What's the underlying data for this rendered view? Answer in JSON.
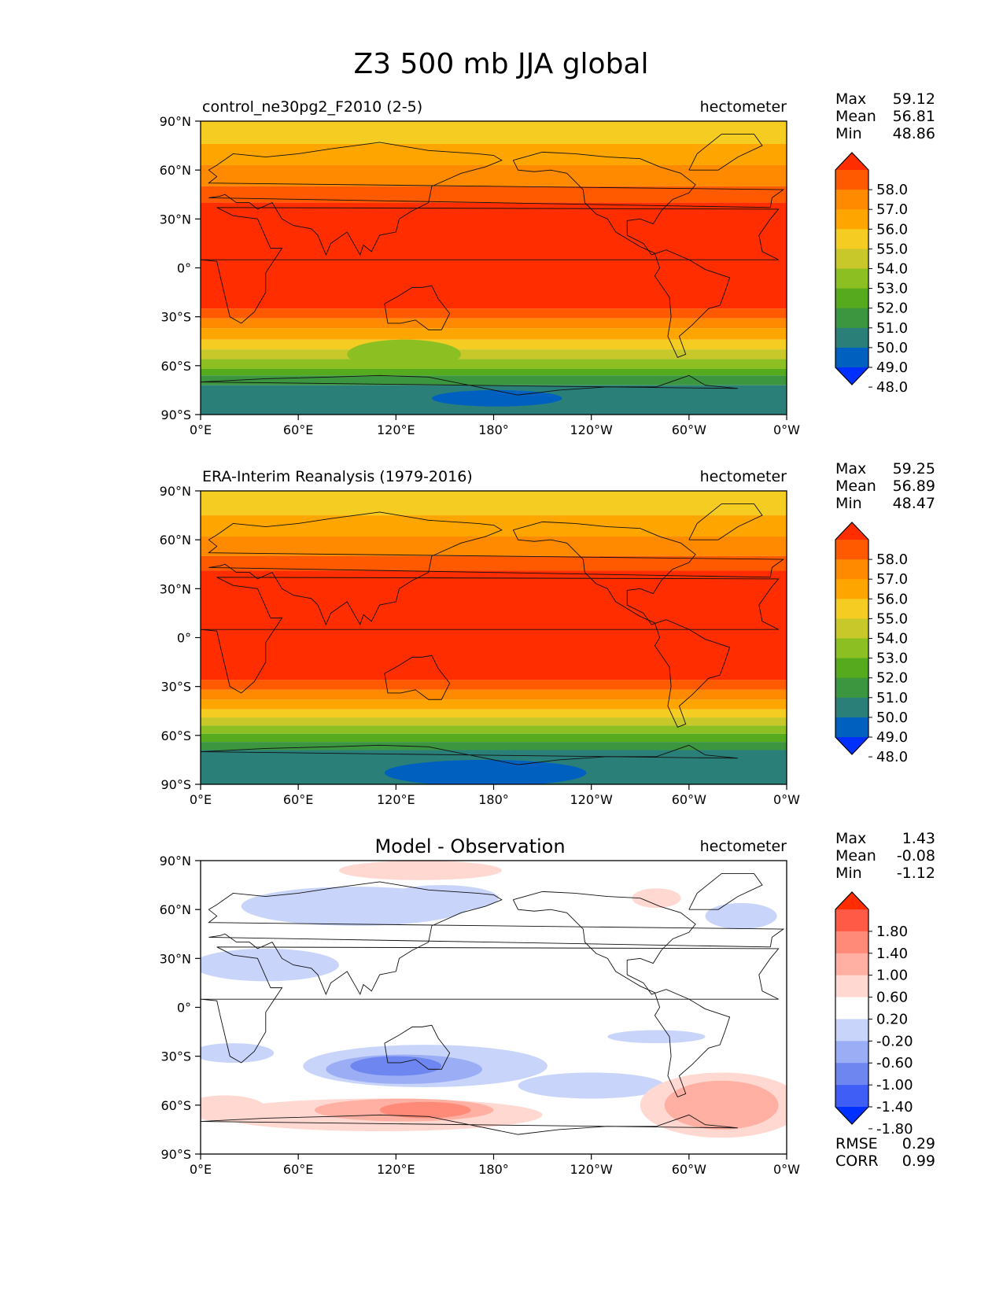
{
  "figure": {
    "title": "Z3 500 mb JJA global"
  },
  "chart_data": [
    {
      "type": "heatmap",
      "title": "control_ne30pg2_F2010 (2-5)",
      "units": "hectometer",
      "stats": {
        "max_label": "Max",
        "max": "59.12",
        "mean_label": "Mean",
        "mean": "56.81",
        "min_label": "Min",
        "min": "48.86"
      },
      "colorbar": {
        "levels": [
          "58.0",
          "57.0",
          "56.0",
          "55.0",
          "54.0",
          "53.0",
          "52.0",
          "51.0",
          "50.0",
          "49.0",
          "48.0"
        ],
        "colors": [
          "#ff2d00",
          "#ff5a00",
          "#ff8a00",
          "#ffa500",
          "#f5cd22",
          "#c8c82a",
          "#8cbf22",
          "#55aa1e",
          "#3c9640",
          "#2a8079",
          "#0060c0",
          "#0030ff"
        ]
      },
      "xticks": [
        "0°E",
        "60°E",
        "120°E",
        "180°",
        "120°W",
        "60°W",
        "0°W"
      ],
      "yticks": [
        "90°N",
        "60°N",
        "30°N",
        "0°",
        "30°S",
        "60°S",
        "90°S"
      ],
      "xlim": [
        0,
        360
      ],
      "ylim": [
        -90,
        90
      ],
      "bands": [
        {
          "lat": 90,
          "color": "#f5cd22"
        },
        {
          "lat": 76,
          "color": "#ffa500"
        },
        {
          "lat": 63,
          "color": "#ff8a00"
        },
        {
          "lat": 50,
          "color": "#ff5a00"
        },
        {
          "lat": 40,
          "color": "#ff2d00"
        },
        {
          "lat": -25,
          "color": "#ff5a00"
        },
        {
          "lat": -31,
          "color": "#ff8a00"
        },
        {
          "lat": -37,
          "color": "#ffa500"
        },
        {
          "lat": -44,
          "color": "#f5cd22"
        },
        {
          "lat": -50,
          "color": "#c8c82a"
        },
        {
          "lat": -56,
          "color": "#8cbf22"
        },
        {
          "lat": -62,
          "color": "#55aa1e"
        },
        {
          "lat": -66,
          "color": "#3c9640"
        },
        {
          "lat": -72,
          "color": "#2a8079"
        }
      ],
      "blobs": [
        {
          "lon": 182,
          "lat": -80,
          "dlon": 40,
          "dlat": 5,
          "color": "#0060c0"
        },
        {
          "lon": 125,
          "lat": -53,
          "dlon": 35,
          "dlat": 9,
          "color": "#8cbf22"
        }
      ]
    },
    {
      "type": "heatmap",
      "title": "ERA-Interim Reanalysis (1979-2016)",
      "units": "hectometer",
      "stats": {
        "max_label": "Max",
        "max": "59.25",
        "mean_label": "Mean",
        "mean": "56.89",
        "min_label": "Min",
        "min": "48.47"
      },
      "colorbar": {
        "levels": [
          "58.0",
          "57.0",
          "56.0",
          "55.0",
          "54.0",
          "53.0",
          "52.0",
          "51.0",
          "50.0",
          "49.0",
          "48.0"
        ],
        "colors": [
          "#ff2d00",
          "#ff5a00",
          "#ff8a00",
          "#ffa500",
          "#f5cd22",
          "#c8c82a",
          "#8cbf22",
          "#55aa1e",
          "#3c9640",
          "#2a8079",
          "#0060c0",
          "#0030ff"
        ]
      },
      "xticks": [
        "0°E",
        "60°E",
        "120°E",
        "180°",
        "120°W",
        "60°W",
        "0°W"
      ],
      "yticks": [
        "90°N",
        "60°N",
        "30°N",
        "0°",
        "30°S",
        "60°S",
        "90°S"
      ],
      "xlim": [
        0,
        360
      ],
      "ylim": [
        -90,
        90
      ],
      "bands": [
        {
          "lat": 90,
          "color": "#f5cd22"
        },
        {
          "lat": 75,
          "color": "#ffa500"
        },
        {
          "lat": 62,
          "color": "#ff8a00"
        },
        {
          "lat": 50,
          "color": "#ff5a00"
        },
        {
          "lat": 41,
          "color": "#ff2d00"
        },
        {
          "lat": -26,
          "color": "#ff5a00"
        },
        {
          "lat": -32,
          "color": "#ff8a00"
        },
        {
          "lat": -38,
          "color": "#ffa500"
        },
        {
          "lat": -44,
          "color": "#f5cd22"
        },
        {
          "lat": -49,
          "color": "#c8c82a"
        },
        {
          "lat": -54,
          "color": "#8cbf22"
        },
        {
          "lat": -59,
          "color": "#55aa1e"
        },
        {
          "lat": -64,
          "color": "#3c9640"
        },
        {
          "lat": -69,
          "color": "#2a8079"
        }
      ],
      "blobs": [
        {
          "lon": 175,
          "lat": -83,
          "dlon": 62,
          "dlat": 8,
          "color": "#0060c0"
        }
      ]
    },
    {
      "type": "heatmap",
      "title": "Model - Observation",
      "units": "hectometer",
      "stats": {
        "max_label": "Max",
        "max": "1.43",
        "mean_label": "Mean",
        "mean": "-0.08",
        "min_label": "Min",
        "min": "-1.12"
      },
      "extra_stats": {
        "rmse_label": "RMSE",
        "rmse": "0.29",
        "corr_label": "CORR",
        "corr": "0.99"
      },
      "colorbar": {
        "levels": [
          "1.80",
          "1.40",
          "1.00",
          "0.60",
          "0.20",
          "-0.20",
          "-0.60",
          "-1.00",
          "-1.40",
          "-1.80"
        ],
        "colors": [
          "#ff2d00",
          "#ff5a46",
          "#ff8a78",
          "#ffb0a3",
          "#ffd8d2",
          "#ffffff",
          "#c8d4fa",
          "#9aadf5",
          "#6e86f0",
          "#3f5ef5",
          "#0030ff"
        ]
      },
      "xticks": [
        "0°E",
        "60°E",
        "120°E",
        "180°",
        "120°W",
        "60°W",
        "0°W"
      ],
      "yticks": [
        "90°N",
        "60°N",
        "30°N",
        "0°",
        "30°S",
        "60°S",
        "90°S"
      ],
      "xlim": [
        0,
        360
      ],
      "ylim": [
        -90,
        90
      ],
      "bands": [
        {
          "lat": 90,
          "color": "#ffffff"
        }
      ],
      "blobs": [
        {
          "lon": 135,
          "lat": 84,
          "dlon": 50,
          "dlat": 6,
          "color": "#ffd8d2"
        },
        {
          "lon": 95,
          "lat": 62,
          "dlon": 70,
          "dlat": 12,
          "color": "#c8d4fa"
        },
        {
          "lon": 40,
          "lat": 26,
          "dlon": 45,
          "dlat": 10,
          "color": "#c8d4fa"
        },
        {
          "lon": 148,
          "lat": 67,
          "dlon": 35,
          "dlat": 8,
          "color": "#c8d4fa"
        },
        {
          "lon": 280,
          "lat": 67,
          "dlon": 15,
          "dlat": 6,
          "color": "#ffd8d2"
        },
        {
          "lon": 332,
          "lat": 56,
          "dlon": 22,
          "dlat": 8,
          "color": "#c8d4fa"
        },
        {
          "lon": 138,
          "lat": -36,
          "dlon": 75,
          "dlat": 13,
          "color": "#c8d4fa"
        },
        {
          "lon": 125,
          "lat": -38,
          "dlon": 48,
          "dlat": 9,
          "color": "#9aadf5"
        },
        {
          "lon": 120,
          "lat": -36,
          "dlon": 28,
          "dlat": 6,
          "color": "#6e86f0"
        },
        {
          "lon": 240,
          "lat": -48,
          "dlon": 45,
          "dlat": 8,
          "color": "#c8d4fa"
        },
        {
          "lon": 20,
          "lat": -28,
          "dlon": 25,
          "dlat": 6,
          "color": "#c8d4fa"
        },
        {
          "lon": 280,
          "lat": -18,
          "dlon": 30,
          "dlat": 4,
          "color": "#c8d4fa"
        },
        {
          "lon": 110,
          "lat": -66,
          "dlon": 100,
          "dlat": 10,
          "color": "#ffd8d2"
        },
        {
          "lon": 125,
          "lat": -63,
          "dlon": 55,
          "dlat": 7,
          "color": "#ffb0a3"
        },
        {
          "lon": 138,
          "lat": -63,
          "dlon": 28,
          "dlat": 5,
          "color": "#ff8a78"
        },
        {
          "lon": 320,
          "lat": -60,
          "dlon": 50,
          "dlat": 20,
          "color": "#ffd8d2"
        },
        {
          "lon": 320,
          "lat": -60,
          "dlon": 35,
          "dlat": 15,
          "color": "#ffb0a3"
        },
        {
          "lon": 15,
          "lat": -62,
          "dlon": 25,
          "dlat": 8,
          "color": "#ffd8d2"
        }
      ]
    }
  ]
}
